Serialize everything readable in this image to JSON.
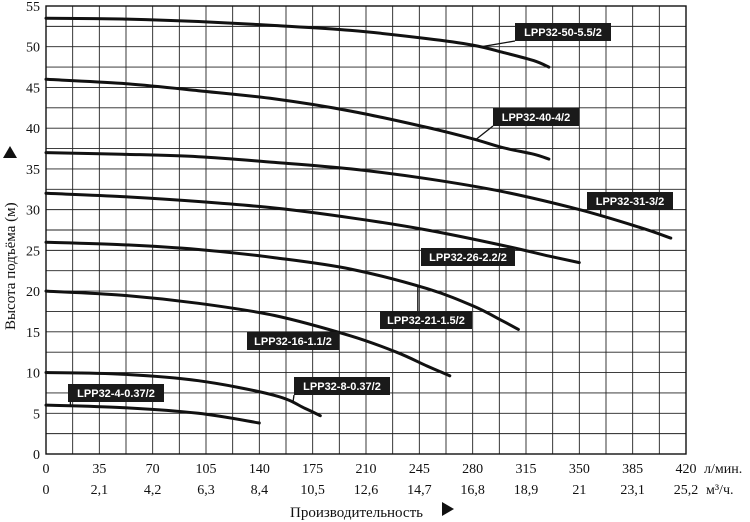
{
  "chart_data": {
    "type": "line",
    "title": "",
    "xlabel": "Производительность",
    "ylabel": "Высота подъёма (м)",
    "x_unit_primary": "л/мин.",
    "x_unit_secondary": "м³/ч.",
    "x_ticks_primary": [
      "0",
      "35",
      "70",
      "105",
      "140",
      "175",
      "210",
      "245",
      "280",
      "315",
      "350",
      "385",
      "420"
    ],
    "x_ticks_secondary": [
      "0",
      "2,1",
      "4,2",
      "6,3",
      "8,4",
      "10,5",
      "12,6",
      "14,7",
      "16,8",
      "18,9",
      "21",
      "23,1",
      "25,2"
    ],
    "y_ticks": [
      "0",
      "5",
      "10",
      "15",
      "20",
      "25",
      "30",
      "35",
      "40",
      "45",
      "50",
      "55"
    ],
    "xlim": [
      0,
      420
    ],
    "ylim": [
      0,
      55
    ],
    "grid": true,
    "series": [
      {
        "name": "LPP32-50-5.5/2",
        "x": [
          0,
          50,
          100,
          150,
          200,
          250,
          280,
          300,
          320,
          330
        ],
        "y": [
          53.5,
          53.4,
          53.1,
          52.6,
          52,
          51,
          50.2,
          49.3,
          48.3,
          47.5
        ]
      },
      {
        "name": "LPP32-40-4/2",
        "x": [
          0,
          50,
          100,
          150,
          200,
          250,
          280,
          300,
          320,
          330
        ],
        "y": [
          46,
          45.5,
          44.6,
          43.6,
          42.1,
          40.1,
          38.7,
          37.6,
          36.8,
          36.2
        ]
      },
      {
        "name": "LPP32-31-3/2",
        "x": [
          0,
          50,
          100,
          150,
          200,
          250,
          300,
          350,
          390,
          410
        ],
        "y": [
          37,
          36.8,
          36.5,
          35.8,
          35,
          33.8,
          32.2,
          30,
          27.8,
          26.5
        ]
      },
      {
        "name": "LPP32-26-2.2/2",
        "x": [
          0,
          50,
          100,
          150,
          200,
          250,
          300,
          330,
          350
        ],
        "y": [
          32,
          31.6,
          31,
          30.2,
          29,
          27.5,
          25.6,
          24.3,
          23.5
        ]
      },
      {
        "name": "LPP32-21-1.5/2",
        "x": [
          0,
          50,
          100,
          150,
          200,
          250,
          280,
          300,
          310
        ],
        "y": [
          26,
          25.7,
          25.1,
          24.1,
          22.7,
          20.3,
          18.2,
          16.3,
          15.3
        ]
      },
      {
        "name": "LPP32-16-1.1/2",
        "x": [
          0,
          50,
          100,
          150,
          200,
          230,
          250,
          260,
          265
        ],
        "y": [
          20,
          19.5,
          18.5,
          17,
          14.5,
          12.5,
          10.8,
          10,
          9.6
        ]
      },
      {
        "name": "LPP32-8-0.37/2",
        "x": [
          0,
          50,
          100,
          150,
          170,
          180
        ],
        "y": [
          10,
          9.8,
          9,
          7.2,
          5.6,
          4.7
        ]
      },
      {
        "name": "LPP32-4-0.37/2",
        "x": [
          0,
          50,
          100,
          140
        ],
        "y": [
          6,
          5.7,
          5,
          3.8
        ]
      }
    ]
  }
}
